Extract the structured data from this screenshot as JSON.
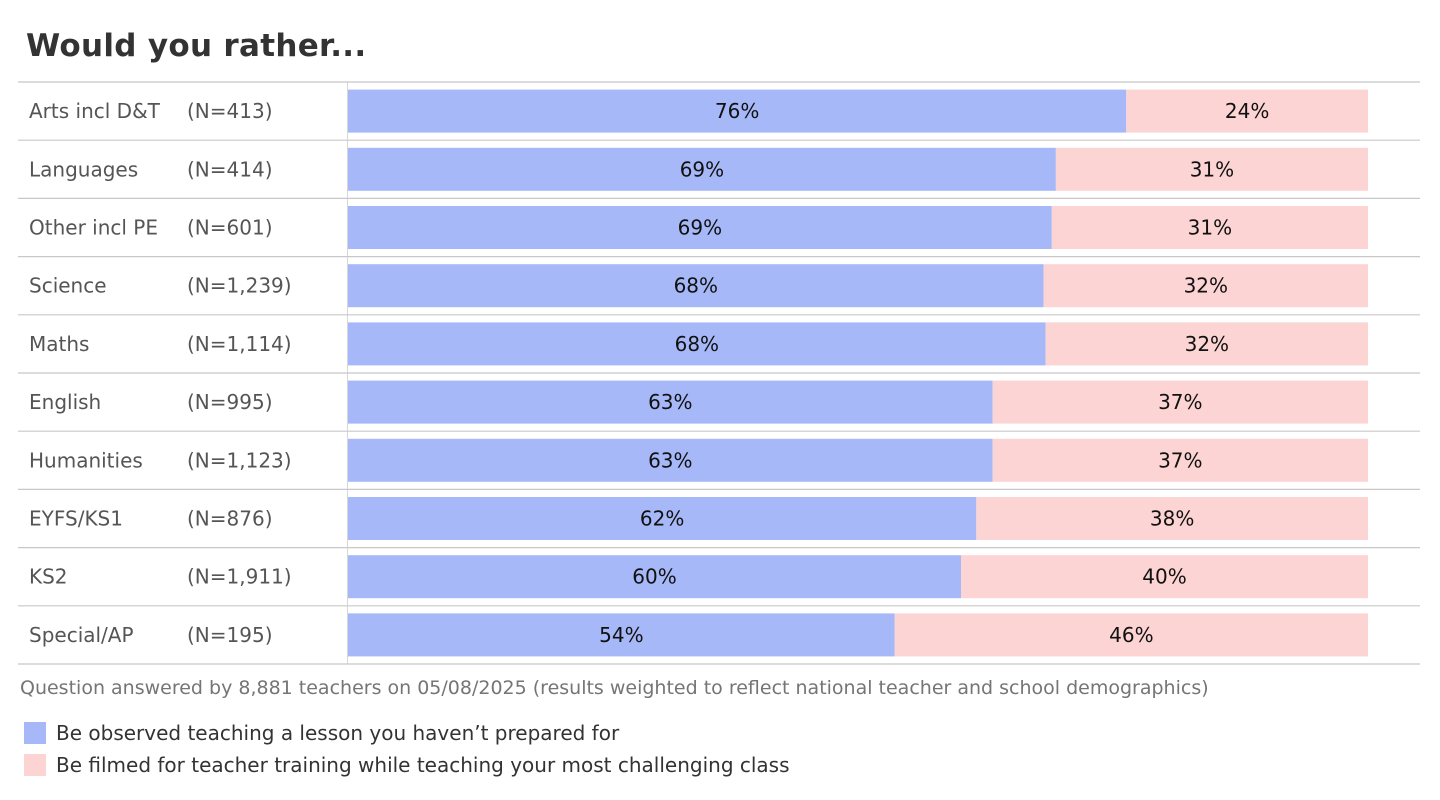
{
  "chart_data": {
    "type": "bar",
    "stacked": true,
    "orientation": "horizontal",
    "percent": true,
    "title": "Would you rather...",
    "categories": [
      "Arts incl D&T",
      "Languages",
      "Other incl PE",
      "Science",
      "Maths",
      "English",
      "Humanities",
      "EYFS/KS1",
      "KS2",
      "Special/AP"
    ],
    "sample_sizes": [
      "(N=413)",
      "(N=414)",
      "(N=601)",
      "(N=1,239)",
      "(N=1,114)",
      "(N=995)",
      "(N=1,123)",
      "(N=876)",
      "(N=1,911)",
      "(N=195)"
    ],
    "series": [
      {
        "name": "Be observed teaching a lesson you haven’t prepared for",
        "values": [
          76.3,
          69.4,
          69,
          68.2,
          68.4,
          63.2,
          63.2,
          61.6,
          60.1,
          53.6
        ],
        "labels": [
          "76%",
          "69%",
          "69%",
          "68%",
          "68%",
          "63%",
          "63%",
          "62%",
          "60%",
          "54%"
        ],
        "color": "#a6b8f8"
      },
      {
        "name": "Be filmed for teacher training while teaching your most challenging class",
        "values": [
          23.7,
          30.6,
          31,
          31.8,
          31.6,
          36.8,
          36.8,
          38.4,
          39.9,
          46.4
        ],
        "labels": [
          "24%",
          "31%",
          "31%",
          "32%",
          "32%",
          "37%",
          "37%",
          "38%",
          "40%",
          "46%"
        ],
        "color": "#fbd4d3"
      }
    ],
    "xlim": [
      0,
      100
    ],
    "legend": "bottom-left",
    "grid": false
  },
  "footnote": "Question answered by 8,881 teachers on 05/08/2025 (results weighted to reflect national teacher and school demographics)"
}
